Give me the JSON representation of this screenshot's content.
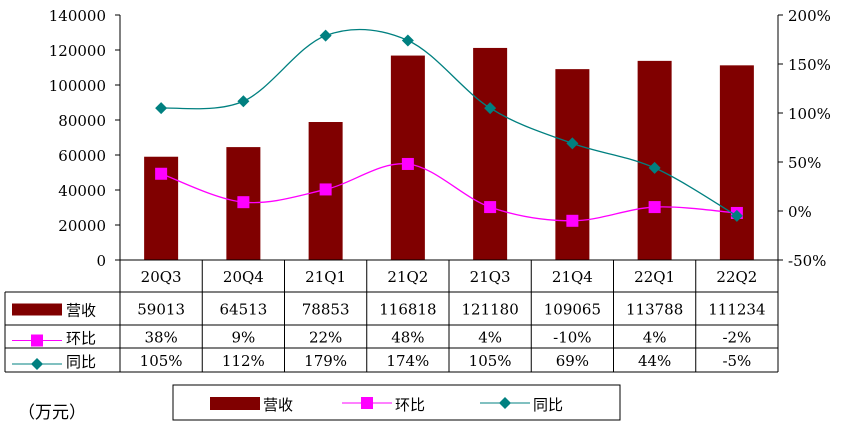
{
  "chart_data": {
    "type": "bar+line",
    "categories": [
      "20Q3",
      "20Q4",
      "21Q1",
      "21Q2",
      "21Q3",
      "21Q4",
      "22Q1",
      "22Q2"
    ],
    "series": [
      {
        "name": "营收",
        "type": "bar",
        "axis": "left",
        "color": "#800000",
        "values": [
          59013,
          64513,
          78853,
          116818,
          121180,
          109065,
          113788,
          111234
        ],
        "labels": [
          "59013",
          "64513",
          "78853",
          "116818",
          "121180",
          "109065",
          "113788",
          "111234"
        ]
      },
      {
        "name": "环比",
        "type": "line",
        "axis": "right",
        "color": "#ff00ff",
        "marker": "square",
        "values": [
          38,
          9,
          22,
          48,
          4,
          -10,
          4,
          -2
        ],
        "labels": [
          "38%",
          "9%",
          "22%",
          "48%",
          "4%",
          "-10%",
          "4%",
          "-2%"
        ]
      },
      {
        "name": "同比",
        "type": "line",
        "axis": "right",
        "color": "#008080",
        "marker": "diamond",
        "smooth": true,
        "values": [
          105,
          112,
          179,
          174,
          105,
          69,
          44,
          -5
        ],
        "labels": [
          "105%",
          "112%",
          "179%",
          "174%",
          "105%",
          "69%",
          "44%",
          "-5%"
        ]
      }
    ],
    "left_axis": {
      "ylim": [
        0,
        140000
      ],
      "ticks": [
        "0",
        "20000",
        "40000",
        "60000",
        "80000",
        "100000",
        "120000",
        "140000"
      ]
    },
    "right_axis": {
      "ylim": [
        -50,
        200
      ],
      "ticks": [
        "-50%",
        "0%",
        "50%",
        "100%",
        "150%",
        "200%"
      ]
    },
    "unit_label": "（万元）",
    "legend": {
      "placement": "bottom",
      "items": [
        "营收",
        "环比",
        "同比"
      ]
    },
    "grid": false,
    "data_table": true
  }
}
